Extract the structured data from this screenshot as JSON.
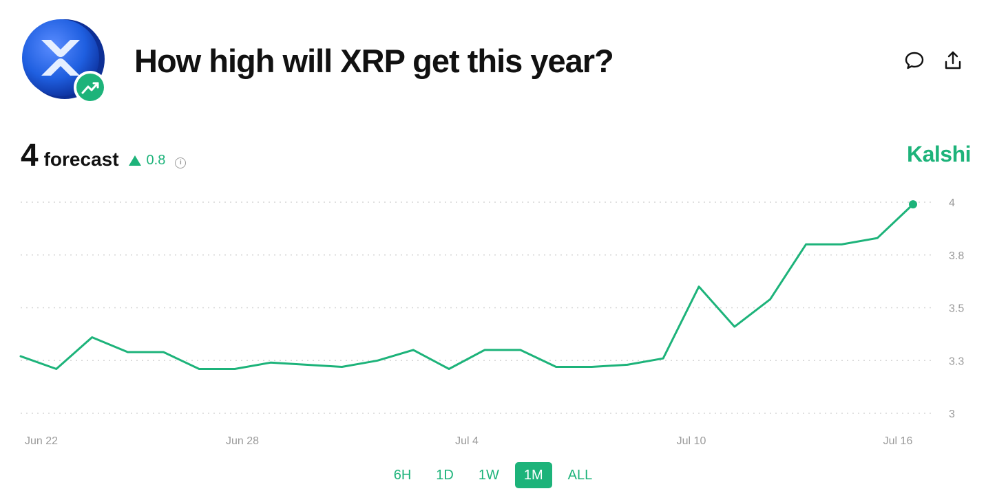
{
  "header": {
    "title": "How high will XRP get this year?"
  },
  "summary": {
    "value": "4",
    "label": "forecast",
    "change": "0.8",
    "info": "i"
  },
  "brand": "Kalshi",
  "colors": {
    "accent": "#1db37a",
    "gridline": "#d6d6d6",
    "tick_label": "#9a9a9a",
    "logo_blue": "#1f5fe0"
  },
  "icons": [
    "xrp-logo-icon",
    "trending-up-icon",
    "comment-icon",
    "share-icon",
    "info-icon"
  ],
  "ranges": [
    {
      "label": "6H",
      "active": false
    },
    {
      "label": "1D",
      "active": false
    },
    {
      "label": "1W",
      "active": false
    },
    {
      "label": "1M",
      "active": true
    },
    {
      "label": "ALL",
      "active": false
    }
  ],
  "chart_data": {
    "type": "line",
    "title": "",
    "xlabel": "",
    "ylabel": "",
    "x_ticks": [
      "Jun 22",
      "Jun 28",
      "Jul 4",
      "Jul 10",
      "Jul 16"
    ],
    "y_ticks": [
      "4",
      "3.8",
      "3.5",
      "3.3",
      "3"
    ],
    "ylim": [
      3,
      4
    ],
    "grid": true,
    "y_axis_position": "right",
    "x": [
      "Jun 22",
      "Jun 23",
      "Jun 24",
      "Jun 25",
      "Jun 26",
      "Jun 27",
      "Jun 28",
      "Jun 29",
      "Jun 30",
      "Jul 1",
      "Jul 2",
      "Jul 3",
      "Jul 4",
      "Jul 5",
      "Jul 6",
      "Jul 7",
      "Jul 8",
      "Jul 9",
      "Jul 10",
      "Jul 11",
      "Jul 12",
      "Jul 13",
      "Jul 14",
      "Jul 15",
      "Jul 16",
      "Jul 16"
    ],
    "series": [
      {
        "values": [
          3.27,
          3.21,
          3.36,
          3.29,
          3.29,
          3.21,
          3.21,
          3.24,
          3.23,
          3.22,
          3.25,
          3.3,
          3.21,
          3.3,
          3.3,
          3.22,
          3.22,
          3.23,
          3.26,
          3.6,
          3.41,
          3.54,
          3.8,
          3.8,
          3.83,
          3.99
        ]
      }
    ]
  }
}
